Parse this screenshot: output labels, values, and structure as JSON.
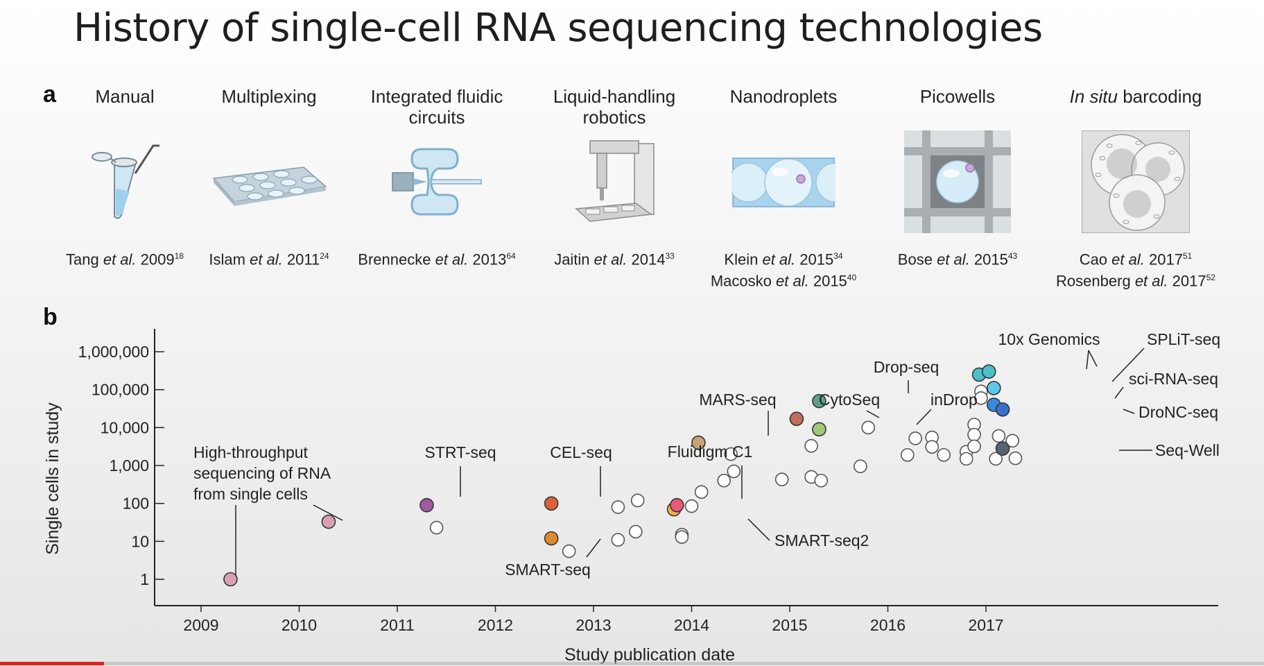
{
  "slide": {
    "title": "History of single-cell RNA sequencing technologies",
    "panel_a_label": "a",
    "panel_b_label": "b"
  },
  "technologies": [
    {
      "title": "Manual",
      "refs": [
        {
          "author": "Tang",
          "etal": "et al.",
          "year": "2009",
          "sup": "18"
        }
      ],
      "icon": "tube-icon"
    },
    {
      "title": "Multiplexing",
      "refs": [
        {
          "author": "Islam",
          "etal": "et al.",
          "year": "2011",
          "sup": "24"
        }
      ],
      "icon": "multiwell-plate-icon"
    },
    {
      "title": "Integrated fluidic circuits",
      "refs": [
        {
          "author": "Brennecke",
          "etal": "et al.",
          "year": "2013",
          "sup": "64"
        }
      ],
      "icon": "fluidic-circuit-icon"
    },
    {
      "title": "Liquid-handling robotics",
      "refs": [
        {
          "author": "Jaitin",
          "etal": "et al.",
          "year": "2014",
          "sup": "33"
        }
      ],
      "icon": "robot-icon"
    },
    {
      "title": "Nanodroplets",
      "refs": [
        {
          "author": "Klein",
          "etal": "et al.",
          "year": "2015",
          "sup": "34"
        },
        {
          "author": "Macosko",
          "etal": "et al.",
          "year": "2015",
          "sup": "40"
        }
      ],
      "icon": "droplet-channel-icon"
    },
    {
      "title": "Picowells",
      "refs": [
        {
          "author": "Bose",
          "etal": "et al.",
          "year": "2015",
          "sup": "43"
        }
      ],
      "icon": "picowell-icon"
    },
    {
      "title_italic": "In situ",
      "title_rest": " barcoding",
      "refs": [
        {
          "author": "Cao",
          "etal": "et al.",
          "year": "2017",
          "sup": "51"
        },
        {
          "author": "Rosenberg",
          "etal": "et al.",
          "year": "2017",
          "sup": "52"
        }
      ],
      "icon": "cells-icon"
    }
  ],
  "chart_data": {
    "type": "scatter",
    "xlabel": "Study publication date",
    "ylabel": "Single cells in study",
    "y_scale": "log",
    "xlim": [
      2008.6,
      2017.95
    ],
    "ylim": [
      0.4,
      4000000
    ],
    "xticks": [
      2009,
      2010,
      2011,
      2012,
      2013,
      2014,
      2015,
      2016,
      2017
    ],
    "yticks": [
      1,
      10,
      100,
      1000,
      10000,
      100000,
      1000000
    ],
    "ytick_labels": [
      "1",
      "10",
      "100",
      "1,000",
      "10,000",
      "100,000",
      "1,000,000"
    ],
    "highlighted": [
      {
        "name": "High-throughput sequencing of RNA from single cells",
        "x": 2009.3,
        "y": 1,
        "color": "#d9a0b4",
        "label_lines": [
          "High-throughput",
          "sequencing of RNA",
          "from single cells"
        ]
      },
      {
        "name": "High-throughput sequencing of RNA from single cells",
        "x": 2010.3,
        "y": 33,
        "color": "#d9a0b4"
      },
      {
        "name": "STRT-seq",
        "x": 2011.3,
        "y": 90,
        "color": "#a05aa0",
        "label_lines": [
          "STRT-seq"
        ]
      },
      {
        "name": "CEL-seq",
        "x": 2012.57,
        "y": 100,
        "color": "#e0603c",
        "label_lines": [
          "CEL-seq"
        ]
      },
      {
        "name": "SMART-seq",
        "x": 2012.57,
        "y": 12,
        "color": "#e08a30",
        "label_lines": [
          "SMART-seq"
        ]
      },
      {
        "name": "SMART-seq2",
        "x": 2013.82,
        "y": 70,
        "color": "#f0b440",
        "label_lines": [
          "SMART-seq2"
        ]
      },
      {
        "name": "Fluidigm C1",
        "x": 2013.85,
        "y": 90,
        "color": "#e65a78",
        "label_lines": [
          "Fluidigm C1"
        ]
      },
      {
        "name": "MARS-seq",
        "x": 2014.07,
        "y": 4000,
        "color": "#c8a474",
        "label_lines": [
          "MARS-seq"
        ]
      },
      {
        "name": "CytoSeq",
        "x": 2015.07,
        "y": 17000,
        "color": "#c0705a",
        "label_lines": [
          "CytoSeq"
        ]
      },
      {
        "name": "Drop-seq",
        "x": 2015.3,
        "y": 50000,
        "color": "#5aa08c",
        "label_lines": [
          "Drop-seq"
        ]
      },
      {
        "name": "inDrop",
        "x": 2015.3,
        "y": 9000,
        "color": "#a0c878",
        "label_lines": [
          "inDrop"
        ]
      },
      {
        "name": "10x Genomics",
        "x": 2016.93,
        "y": 250000,
        "color": "#4ec0c8",
        "label_lines": [
          "10x Genomics"
        ]
      },
      {
        "name": "10x Genomics",
        "x": 2017.03,
        "y": 300000,
        "color": "#4ec0c8"
      },
      {
        "name": "SPLiT-seq",
        "x": 2017.08,
        "y": 110000,
        "color": "#5ec8ec",
        "label_lines": [
          "SPLiT-seq"
        ]
      },
      {
        "name": "sci-RNA-seq",
        "x": 2017.08,
        "y": 40000,
        "color": "#3a8ae0",
        "label_lines": [
          "sci-RNA-seq"
        ]
      },
      {
        "name": "DroNC-seq",
        "x": 2017.17,
        "y": 30000,
        "color": "#3a70c8",
        "label_lines": [
          "DroNC-seq"
        ]
      },
      {
        "name": "Seq-Well",
        "x": 2017.17,
        "y": 2800,
        "color": "#5a6470",
        "label_lines": [
          "Seq-Well"
        ]
      }
    ],
    "other_points": [
      [
        2011.4,
        23
      ],
      [
        2012.75,
        5.5
      ],
      [
        2013.25,
        80
      ],
      [
        2013.25,
        11
      ],
      [
        2013.45,
        120
      ],
      [
        2013.43,
        18
      ],
      [
        2013.9,
        15
      ],
      [
        2013.9,
        13
      ],
      [
        2014.0,
        85
      ],
      [
        2014.1,
        200
      ],
      [
        2014.33,
        400
      ],
      [
        2014.4,
        2000
      ],
      [
        2014.43,
        700
      ],
      [
        2014.92,
        430
      ],
      [
        2015.22,
        3300
      ],
      [
        2015.22,
        500
      ],
      [
        2015.32,
        400
      ],
      [
        2015.72,
        950
      ],
      [
        2015.8,
        10000
      ],
      [
        2016.2,
        1900
      ],
      [
        2016.28,
        5200
      ],
      [
        2016.45,
        5500
      ],
      [
        2016.45,
        3100
      ],
      [
        2016.57,
        1900
      ],
      [
        2016.8,
        2300
      ],
      [
        2016.8,
        1500
      ],
      [
        2016.88,
        12000
      ],
      [
        2016.88,
        6500
      ],
      [
        2016.88,
        3200
      ],
      [
        2016.95,
        90000
      ],
      [
        2016.95,
        60000
      ],
      [
        2017.13,
        6000
      ],
      [
        2017.1,
        1500
      ],
      [
        2017.27,
        4500
      ],
      [
        2017.3,
        1550
      ]
    ]
  }
}
